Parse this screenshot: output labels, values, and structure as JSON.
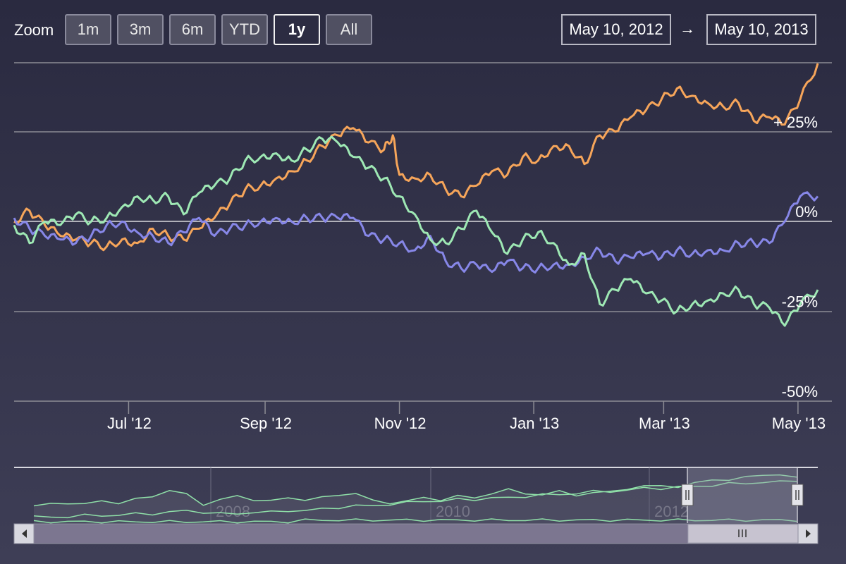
{
  "zoom": {
    "label": "Zoom",
    "buttons": [
      {
        "label": "1m",
        "active": false
      },
      {
        "label": "3m",
        "active": false
      },
      {
        "label": "6m",
        "active": false
      },
      {
        "label": "YTD",
        "active": false
      },
      {
        "label": "1y",
        "active": true
      },
      {
        "label": "All",
        "active": false
      }
    ]
  },
  "range": {
    "from": "May 10, 2012",
    "arrow": "→",
    "to": "May 10, 2013"
  },
  "colors": {
    "background_top": "#2a2a40",
    "background_bottom": "#3e3e56",
    "grid": "#8c8c94",
    "text": "#ffffff",
    "series": [
      "#f6a55a",
      "#8787e8",
      "#9ee8b4"
    ],
    "navigator_mask": "#5d5d72",
    "navigator_line": "#8fe0a8",
    "scrollbar_track": "#7c7690",
    "scrollbar_thumb": "#c7c3d0"
  },
  "chart_data": {
    "type": "line",
    "title": "",
    "xlabel": "",
    "ylabel": "",
    "ylim": [
      -50,
      40
    ],
    "xlim": [
      "2012-05-10",
      "2013-05-10"
    ],
    "grid": true,
    "legend": "none",
    "x_ticks": [
      {
        "date": "2012-07-01",
        "label": "Jul '12"
      },
      {
        "date": "2012-09-01",
        "label": "Sep '12"
      },
      {
        "date": "2012-11-01",
        "label": "Nov '12"
      },
      {
        "date": "2013-01-01",
        "label": "Jan '13"
      },
      {
        "date": "2013-03-01",
        "label": "Mar '13"
      },
      {
        "date": "2013-05-01",
        "label": "May '13"
      }
    ],
    "y_ticks": [
      {
        "value": 25,
        "label": "+ 25%"
      },
      {
        "value": 0,
        "label": "0%"
      },
      {
        "value": -25,
        "label": "-25%"
      },
      {
        "value": -50,
        "label": "-50%"
      }
    ],
    "series": [
      {
        "name": "",
        "color": "#f6a55a",
        "data": [
          [
            "2012-05-10",
            0
          ],
          [
            "2012-05-17",
            3
          ],
          [
            "2012-05-24",
            -1
          ],
          [
            "2012-05-31",
            -4
          ],
          [
            "2012-06-07",
            -5
          ],
          [
            "2012-06-14",
            -6
          ],
          [
            "2012-06-21",
            -7
          ],
          [
            "2012-06-28",
            -5
          ],
          [
            "2012-07-05",
            -6
          ],
          [
            "2012-07-12",
            -2
          ],
          [
            "2012-07-19",
            -4
          ],
          [
            "2012-07-26",
            -5
          ],
          [
            "2012-08-02",
            -2
          ],
          [
            "2012-08-09",
            1
          ],
          [
            "2012-08-16",
            5
          ],
          [
            "2012-08-23",
            9
          ],
          [
            "2012-08-30",
            10
          ],
          [
            "2012-09-06",
            12
          ],
          [
            "2012-09-13",
            14
          ],
          [
            "2012-09-20",
            17
          ],
          [
            "2012-09-27",
            21
          ],
          [
            "2012-10-04",
            24
          ],
          [
            "2012-10-11",
            26
          ],
          [
            "2012-10-18",
            22
          ],
          [
            "2012-10-25",
            20
          ],
          [
            "2012-10-29",
            24
          ],
          [
            "2012-11-01",
            13
          ],
          [
            "2012-11-08",
            12
          ],
          [
            "2012-11-15",
            13
          ],
          [
            "2012-11-22",
            9
          ],
          [
            "2012-11-29",
            7
          ],
          [
            "2012-12-06",
            10
          ],
          [
            "2012-12-13",
            14
          ],
          [
            "2012-12-20",
            13
          ],
          [
            "2012-12-27",
            18
          ],
          [
            "2013-01-03",
            17
          ],
          [
            "2013-01-10",
            21
          ],
          [
            "2013-01-17",
            21
          ],
          [
            "2013-01-24",
            16
          ],
          [
            "2013-01-31",
            24
          ],
          [
            "2013-02-07",
            25
          ],
          [
            "2013-02-14",
            29
          ],
          [
            "2013-02-21",
            31
          ],
          [
            "2013-02-28",
            34
          ],
          [
            "2013-03-07",
            37
          ],
          [
            "2013-03-14",
            35
          ],
          [
            "2013-03-21",
            33
          ],
          [
            "2013-03-28",
            32
          ],
          [
            "2013-04-04",
            33
          ],
          [
            "2013-04-11",
            28
          ],
          [
            "2013-04-18",
            29
          ],
          [
            "2013-04-25",
            27
          ],
          [
            "2013-05-02",
            34
          ],
          [
            "2013-05-10",
            44
          ]
        ]
      },
      {
        "name": "",
        "color": "#8787e8",
        "data": [
          [
            "2012-05-10",
            1
          ],
          [
            "2012-05-17",
            -2
          ],
          [
            "2012-05-24",
            -4
          ],
          [
            "2012-05-31",
            -5
          ],
          [
            "2012-06-07",
            -6
          ],
          [
            "2012-06-14",
            -4
          ],
          [
            "2012-06-21",
            -1
          ],
          [
            "2012-06-28",
            0
          ],
          [
            "2012-07-05",
            -3
          ],
          [
            "2012-07-12",
            -4
          ],
          [
            "2012-07-19",
            -6
          ],
          [
            "2012-07-26",
            -3
          ],
          [
            "2012-08-02",
            1
          ],
          [
            "2012-08-09",
            -4
          ],
          [
            "2012-08-16",
            -2
          ],
          [
            "2012-08-23",
            -1
          ],
          [
            "2012-08-30",
            0
          ],
          [
            "2012-09-06",
            1
          ],
          [
            "2012-09-13",
            0
          ],
          [
            "2012-09-20",
            1
          ],
          [
            "2012-09-27",
            1
          ],
          [
            "2012-10-04",
            1
          ],
          [
            "2012-10-11",
            1
          ],
          [
            "2012-10-18",
            -4
          ],
          [
            "2012-10-25",
            -5
          ],
          [
            "2012-11-01",
            -6
          ],
          [
            "2012-11-08",
            -8
          ],
          [
            "2012-11-15",
            -4
          ],
          [
            "2012-11-22",
            -11
          ],
          [
            "2012-11-29",
            -13
          ],
          [
            "2012-12-06",
            -12
          ],
          [
            "2012-12-13",
            -14
          ],
          [
            "2012-12-20",
            -11
          ],
          [
            "2012-12-27",
            -13
          ],
          [
            "2013-01-03",
            -13
          ],
          [
            "2013-01-10",
            -12
          ],
          [
            "2013-01-17",
            -12
          ],
          [
            "2013-01-24",
            -10
          ],
          [
            "2013-01-31",
            -8
          ],
          [
            "2013-02-07",
            -11
          ],
          [
            "2013-02-14",
            -10
          ],
          [
            "2013-02-21",
            -9
          ],
          [
            "2013-02-28",
            -10
          ],
          [
            "2013-03-07",
            -8
          ],
          [
            "2013-03-14",
            -9
          ],
          [
            "2013-03-21",
            -8
          ],
          [
            "2013-03-28",
            -8
          ],
          [
            "2013-04-04",
            -6
          ],
          [
            "2013-04-11",
            -6
          ],
          [
            "2013-04-18",
            -6
          ],
          [
            "2013-04-25",
            0
          ],
          [
            "2013-05-02",
            7
          ],
          [
            "2013-05-10",
            7
          ]
        ]
      },
      {
        "name": "",
        "color": "#9ee8b4",
        "data": [
          [
            "2012-05-10",
            -1
          ],
          [
            "2012-05-17",
            -6
          ],
          [
            "2012-05-24",
            0
          ],
          [
            "2012-05-31",
            -1
          ],
          [
            "2012-06-07",
            2
          ],
          [
            "2012-06-14",
            0
          ],
          [
            "2012-06-21",
            1
          ],
          [
            "2012-06-28",
            4
          ],
          [
            "2012-07-05",
            7
          ],
          [
            "2012-07-12",
            6
          ],
          [
            "2012-07-19",
            7
          ],
          [
            "2012-07-26",
            2
          ],
          [
            "2012-08-02",
            8
          ],
          [
            "2012-08-09",
            10
          ],
          [
            "2012-08-16",
            12
          ],
          [
            "2012-08-23",
            17
          ],
          [
            "2012-08-30",
            18
          ],
          [
            "2012-09-06",
            19
          ],
          [
            "2012-09-13",
            17
          ],
          [
            "2012-09-20",
            20
          ],
          [
            "2012-09-27",
            23
          ],
          [
            "2012-10-04",
            22
          ],
          [
            "2012-10-11",
            18
          ],
          [
            "2012-10-18",
            15
          ],
          [
            "2012-10-25",
            12
          ],
          [
            "2012-11-01",
            7
          ],
          [
            "2012-11-08",
            2
          ],
          [
            "2012-11-15",
            -5
          ],
          [
            "2012-11-22",
            -6
          ],
          [
            "2012-11-29",
            -2
          ],
          [
            "2012-12-06",
            3
          ],
          [
            "2012-12-13",
            -3
          ],
          [
            "2012-12-20",
            -9
          ],
          [
            "2012-12-27",
            -5
          ],
          [
            "2013-01-03",
            -3
          ],
          [
            "2013-01-10",
            -6
          ],
          [
            "2013-01-17",
            -12
          ],
          [
            "2013-01-24",
            -9
          ],
          [
            "2013-01-31",
            -23
          ],
          [
            "2013-02-07",
            -19
          ],
          [
            "2013-02-14",
            -16
          ],
          [
            "2013-02-21",
            -20
          ],
          [
            "2013-02-28",
            -22
          ],
          [
            "2013-03-07",
            -25
          ],
          [
            "2013-03-14",
            -23
          ],
          [
            "2013-03-21",
            -22
          ],
          [
            "2013-03-28",
            -20
          ],
          [
            "2013-04-04",
            -19
          ],
          [
            "2013-04-11",
            -23
          ],
          [
            "2013-04-18",
            -24
          ],
          [
            "2013-04-25",
            -29
          ],
          [
            "2013-05-02",
            -23
          ],
          [
            "2013-05-10",
            -19
          ]
        ]
      }
    ]
  },
  "navigator": {
    "year_labels": [
      "2008",
      "2010",
      "2012"
    ],
    "selection": {
      "from": "2012-05-10",
      "to": "2013-05-10"
    },
    "series": [
      {
        "name": "",
        "values": [
          10,
          11,
          12,
          11,
          13,
          12,
          14,
          16,
          20,
          17,
          11,
          14,
          16,
          14,
          13,
          15,
          14,
          15,
          17,
          18,
          13,
          12,
          13,
          15,
          14,
          16,
          15,
          18,
          20,
          18,
          17,
          19,
          17,
          18,
          19,
          21,
          22,
          23,
          22,
          24,
          27,
          26,
          28,
          30,
          29,
          28
        ]
      },
      {
        "name": "",
        "values": [
          3,
          3,
          3,
          4,
          4,
          4,
          5,
          5,
          6,
          7,
          6,
          5,
          5,
          6,
          6,
          7,
          7,
          8,
          9,
          10,
          10,
          11,
          12,
          13,
          13,
          14,
          14,
          15,
          15,
          16,
          17,
          17,
          18,
          19,
          19,
          20,
          21,
          21,
          22,
          22,
          23,
          24,
          24,
          25,
          25,
          26
        ]
      },
      {
        "name": "",
        "values": [
          0,
          0,
          0,
          0,
          0,
          0,
          0,
          0,
          0,
          0,
          0,
          0,
          0,
          0,
          0,
          0,
          1,
          1,
          1,
          1,
          1,
          1,
          1,
          1,
          1,
          1,
          1,
          1,
          1,
          1,
          1,
          1,
          1,
          1,
          1,
          1,
          1,
          1,
          1,
          1,
          1,
          1,
          1,
          1,
          1,
          1
        ]
      }
    ]
  }
}
